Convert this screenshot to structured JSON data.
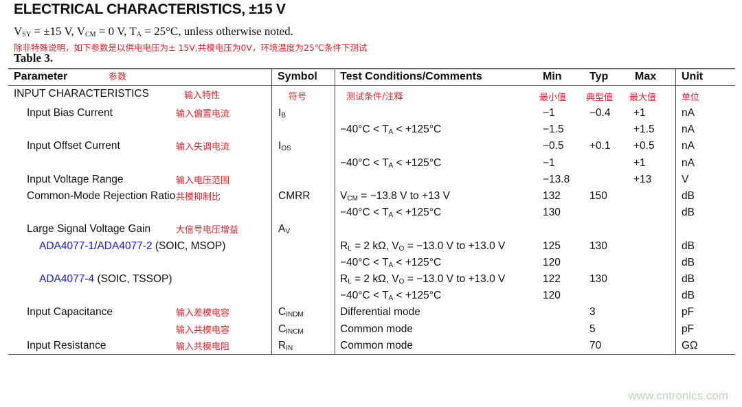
{
  "title": "ELECTRICAL CHARACTERISTICS, ±15 V",
  "subtitle": [
    [
      "V",
      0
    ],
    [
      "SY",
      1
    ],
    [
      " = ±15 V, V",
      0
    ],
    [
      "CM",
      1
    ],
    [
      " = 0 V, T",
      0
    ],
    [
      "A",
      1
    ],
    [
      " = 25°C, unless otherwise noted.",
      0
    ]
  ],
  "cn_note": "除非特殊说明，如下参数是以供电电压为± 15V,共模电压为0V，环境温度为25℃条件下测试",
  "table_label": "Table 3.",
  "headers": {
    "parameter": "Parameter",
    "parameter_cn": "参数",
    "symbol": "Symbol",
    "conditions": "Test Conditions/Comments",
    "min": "Min",
    "typ": "Typ",
    "max": "Max",
    "unit": "Unit"
  },
  "section": {
    "label": "INPUT CHARACTERISTICS",
    "label_cn": "输入特性",
    "symbol_cn": "符号",
    "conditions_cn": "测试条件/注释",
    "min_cn": "最小值",
    "typ_cn": "典型值",
    "max_cn": "最大值",
    "unit_cn": "单位"
  },
  "rows": [
    {
      "param": "Input Bias Current",
      "cn": "输入偏置电流",
      "sym": [
        [
          "I",
          0
        ],
        [
          "B",
          1
        ]
      ],
      "cond": [],
      "min": "−1",
      "typ": "−0.4",
      "max": "+1",
      "unit": "nA"
    },
    {
      "param": "",
      "cn": "",
      "sym": [],
      "cond": [
        [
          "−40°C < T",
          0
        ],
        [
          "A",
          1
        ],
        [
          " < +125°C",
          0
        ]
      ],
      "min": "−1.5",
      "typ": "",
      "max": "+1.5",
      "unit": "nA"
    },
    {
      "param": "Input Offset Current",
      "cn": "输入失调电流",
      "sym": [
        [
          "I",
          0
        ],
        [
          "OS",
          1
        ]
      ],
      "cond": [],
      "min": "−0.5",
      "typ": "+0.1",
      "max": "+0.5",
      "unit": "nA"
    },
    {
      "param": "",
      "cn": "",
      "sym": [],
      "cond": [
        [
          "−40°C < T",
          0
        ],
        [
          "A",
          1
        ],
        [
          " < +125°C",
          0
        ]
      ],
      "min": "−1",
      "typ": "",
      "max": "+1",
      "unit": "nA"
    },
    {
      "param": "Input Voltage Range",
      "cn": "输入电压范围",
      "sym": [],
      "cond": [],
      "min": "−13.8",
      "typ": "",
      "max": "+13",
      "unit": "V"
    },
    {
      "param": "Common-Mode Rejection Ratio",
      "cn": "共模抑制比",
      "sym": [
        [
          "CMRR",
          0
        ]
      ],
      "cond": [
        [
          "V",
          0
        ],
        [
          "CM",
          1
        ],
        [
          " = −13.8 V to +13 V",
          0
        ]
      ],
      "min": "132",
      "typ": "150",
      "max": "",
      "unit": "dB"
    },
    {
      "param": "",
      "cn": "",
      "sym": [],
      "cond": [
        [
          "−40°C < T",
          0
        ],
        [
          "A",
          1
        ],
        [
          " < +125°C",
          0
        ]
      ],
      "min": "130",
      "typ": "",
      "max": "",
      "unit": "dB"
    },
    {
      "param": "Large Signal Voltage Gain",
      "cn": "大信号电压增益",
      "sym": [
        [
          "A",
          0
        ],
        [
          "V",
          1
        ]
      ],
      "cond": [],
      "min": "",
      "typ": "",
      "max": "",
      "unit": ""
    },
    {
      "param_parts": [
        [
          "ADA4077-1",
          1
        ],
        [
          "/",
          0
        ],
        [
          "ADA4077-2",
          1
        ],
        [
          " (SOIC, MSOP)",
          0
        ]
      ],
      "cn": "",
      "sym": [],
      "cond": [
        [
          "R",
          0
        ],
        [
          "L",
          1
        ],
        [
          " = 2 kΩ, V",
          0
        ],
        [
          "O",
          1
        ],
        [
          " = −13.0 V to +13.0 V",
          0
        ]
      ],
      "min": "125",
      "typ": "130",
      "max": "",
      "unit": "dB"
    },
    {
      "param": "",
      "cn": "",
      "sym": [],
      "cond": [
        [
          "−40°C < T",
          0
        ],
        [
          "A",
          1
        ],
        [
          " < +125°C",
          0
        ]
      ],
      "min": "120",
      "typ": "",
      "max": "",
      "unit": "dB"
    },
    {
      "param_parts": [
        [
          "ADA4077-4",
          1
        ],
        [
          " (SOIC, TSSOP)",
          0
        ]
      ],
      "cn": "",
      "sym": [],
      "cond": [
        [
          "R",
          0
        ],
        [
          "L",
          1
        ],
        [
          " = 2 kΩ, V",
          0
        ],
        [
          "O",
          1
        ],
        [
          " = −13.0 V to +13.0 V",
          0
        ]
      ],
      "min": "122",
      "typ": "130",
      "max": "",
      "unit": "dB"
    },
    {
      "param": "",
      "cn": "",
      "sym": [],
      "cond": [
        [
          "−40°C < T",
          0
        ],
        [
          "A",
          1
        ],
        [
          " < +125°C",
          0
        ]
      ],
      "min": "120",
      "typ": "",
      "max": "",
      "unit": "dB"
    },
    {
      "param": "Input Capacitance",
      "cn": "输入差模电容",
      "sym": [
        [
          "C",
          0
        ],
        [
          "INDM",
          1
        ]
      ],
      "cond": [
        [
          "Differential mode",
          0
        ]
      ],
      "min": "",
      "typ": "3",
      "max": "",
      "unit": "pF"
    },
    {
      "param": "",
      "cn": "输入共模电容",
      "sym": [
        [
          "C",
          0
        ],
        [
          "INCM",
          1
        ]
      ],
      "cond": [
        [
          "Common mode",
          0
        ]
      ],
      "min": "",
      "typ": "5",
      "max": "",
      "unit": "pF"
    },
    {
      "param": "Input Resistance",
      "cn": "输入共模电阻",
      "sym": [
        [
          "R",
          0
        ],
        [
          "IN",
          1
        ]
      ],
      "cond": [
        [
          "Common mode",
          0
        ]
      ],
      "min": "",
      "typ": "70",
      "max": "",
      "unit": "GΩ"
    }
  ],
  "watermark": "www.cntronics.com"
}
